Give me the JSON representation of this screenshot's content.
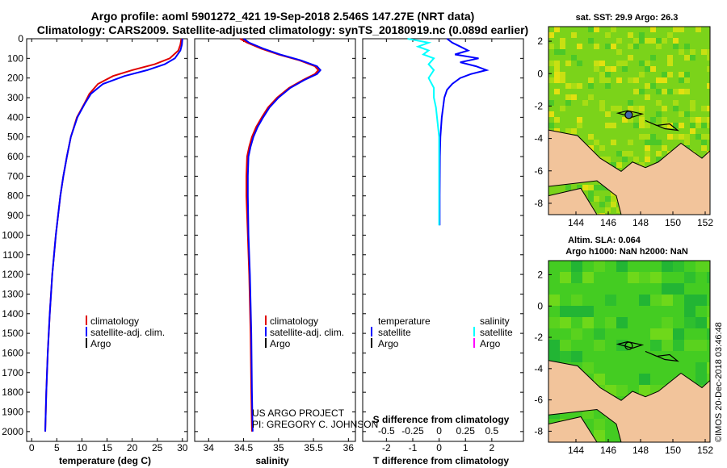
{
  "header": {
    "title_line1": "Argo profile: aoml 5901272_421 19-Sep-2018 2.546S 147.27E (NRT data)",
    "title_line2": "Climatology: CARS2009. Satellite-adjusted climatology: synTS_20180919.nc (0.089d earlier)"
  },
  "colors": {
    "climatology": "#e00000",
    "satellite": "#0000ff",
    "argo": "#000000",
    "sal_sat": "#00ffff",
    "sal_argo": "#ff00ff",
    "land": "#f2c49b",
    "ocean_green": "#33cc22"
  },
  "chart_data": [
    {
      "type": "line",
      "name": "temperature-profile",
      "xlabel": "temperature (deg C)",
      "ylabel": "",
      "xlim": [
        -1,
        31
      ],
      "ylim": [
        2050,
        0
      ],
      "xticks": [
        0,
        5,
        10,
        15,
        20,
        25,
        30
      ],
      "yticks": [
        0,
        100,
        200,
        300,
        400,
        500,
        600,
        700,
        800,
        900,
        1000,
        1100,
        1200,
        1300,
        1400,
        1500,
        1600,
        1700,
        1800,
        1900,
        2000
      ],
      "legend": [
        "climatology",
        "satellite-adj. clim.",
        "Argo"
      ],
      "series": [
        {
          "name": "climatology",
          "depth": [
            0,
            30,
            60,
            100,
            130,
            160,
            190,
            230,
            280,
            330,
            400,
            500,
            600,
            700,
            800,
            1000,
            1200,
            1400,
            1600,
            1800,
            2000
          ],
          "values": [
            29.8,
            29.6,
            29.2,
            27.5,
            24.5,
            20.0,
            16.2,
            13.2,
            11.5,
            10.5,
            9.0,
            7.8,
            7.0,
            6.3,
            5.7,
            4.8,
            4.1,
            3.6,
            3.2,
            2.9,
            2.7
          ]
        },
        {
          "name": "satellite-adj. clim.",
          "depth": [
            0,
            30,
            60,
            100,
            130,
            160,
            190,
            230,
            280,
            330,
            400,
            500,
            600,
            700,
            800,
            1000,
            1200,
            1400,
            1600,
            1800,
            2000
          ],
          "values": [
            30.0,
            29.9,
            29.6,
            28.5,
            26.5,
            23.0,
            18.5,
            14.2,
            11.8,
            10.6,
            9.1,
            7.8,
            7.0,
            6.3,
            5.7,
            4.8,
            4.1,
            3.6,
            3.2,
            2.9,
            2.7
          ]
        }
      ]
    },
    {
      "type": "line",
      "name": "salinity-profile",
      "xlabel": "salinity",
      "xlim": [
        33.8,
        36.1
      ],
      "ylim": [
        2050,
        0
      ],
      "xticks": [
        34,
        34.5,
        35,
        35.5,
        36
      ],
      "legend": [
        "climatology",
        "satellite-adj. clim.",
        "Argo"
      ],
      "annotations": [
        "US ARGO PROJECT",
        "PI: GREGORY C. JOHNSON"
      ],
      "series": [
        {
          "name": "climatology",
          "depth": [
            0,
            20,
            50,
            80,
            110,
            140,
            160,
            180,
            210,
            250,
            300,
            350,
            400,
            450,
            500,
            550,
            600,
            700,
            800,
            1000,
            1200,
            1500,
            1800,
            2000
          ],
          "values": [
            34.45,
            34.55,
            34.75,
            35.0,
            35.3,
            35.52,
            35.57,
            35.52,
            35.35,
            35.15,
            34.98,
            34.85,
            34.76,
            34.68,
            34.62,
            34.58,
            34.55,
            34.54,
            34.54,
            34.56,
            34.58,
            34.6,
            34.61,
            34.62
          ]
        },
        {
          "name": "satellite-adj. clim.",
          "depth": [
            0,
            20,
            50,
            80,
            110,
            140,
            160,
            180,
            210,
            250,
            300,
            350,
            400,
            450,
            500,
            550,
            600,
            700,
            800,
            1000,
            1200,
            1500,
            1800,
            2000
          ],
          "values": [
            34.5,
            34.58,
            34.78,
            35.02,
            35.32,
            35.55,
            35.6,
            35.55,
            35.37,
            35.17,
            35.0,
            34.87,
            34.78,
            34.7,
            34.64,
            34.6,
            34.57,
            34.56,
            34.56,
            34.57,
            34.59,
            34.61,
            34.62,
            34.63
          ]
        }
      ]
    },
    {
      "type": "line",
      "name": "difference-profile",
      "xlabel": "T difference from climatology",
      "xlabel_top": "S difference from climatology",
      "xlim": [
        -2.9,
        3.2
      ],
      "ylim": [
        2050,
        0
      ],
      "xticks": [
        -2,
        -1,
        0,
        1,
        2
      ],
      "xticklabels_s": [
        "-0.5",
        "-0.25",
        "0",
        "0.25",
        "0.5"
      ],
      "legend_temperature": {
        "title": "temperature",
        "items": [
          "satellite",
          "Argo"
        ]
      },
      "legend_salinity": {
        "title": "salinity",
        "items": [
          "satellite",
          "Argo"
        ]
      },
      "series": [
        {
          "name": "T satellite",
          "depth": [
            0,
            20,
            40,
            60,
            80,
            100,
            120,
            140,
            160,
            180,
            200,
            230,
            260,
            300,
            400,
            500,
            600,
            800,
            900,
            950
          ],
          "values": [
            0.3,
            0.5,
            0.8,
            1.1,
            0.6,
            1.5,
            0.8,
            1.4,
            1.8,
            1.2,
            0.8,
            0.5,
            0.3,
            0.2,
            0.1,
            0.05,
            0.03,
            0.02,
            0.02,
            0.02
          ]
        },
        {
          "name": "S satellite",
          "depth": [
            0,
            20,
            40,
            60,
            80,
            100,
            130,
            160,
            200,
            250,
            300,
            350,
            400,
            500,
            600,
            700,
            800,
            900,
            950
          ],
          "values": [
            -0.3,
            -0.1,
            -0.2,
            -0.1,
            -0.15,
            -0.05,
            -0.1,
            -0.05,
            -0.1,
            -0.05,
            -0.05,
            -0.03,
            -0.02,
            0.0,
            0.0,
            0.0,
            0.0,
            0.0,
            0.0
          ]
        }
      ]
    },
    {
      "type": "heatmap",
      "name": "sst-map",
      "title": "sat. SST: 29.9 Argo: 26.3",
      "xticks": [
        144,
        146,
        148,
        150,
        152
      ],
      "yticks": [
        2,
        0,
        -2,
        -4,
        -6,
        -8
      ],
      "xlim": [
        142.3,
        152.3
      ],
      "ylim": [
        -8.7,
        2.9
      ],
      "marker": {
        "lon": 147.27,
        "lat": -2.546
      }
    },
    {
      "type": "heatmap",
      "name": "sla-map",
      "title": "Altim. SLA: 0.064",
      "subtitle": "Argo h1000: NaN h2000: NaN",
      "xticks": [
        144,
        146,
        148,
        150,
        152
      ],
      "yticks": [
        2,
        0,
        -2,
        -4,
        -6,
        -8
      ],
      "xlim": [
        142.3,
        152.3
      ],
      "ylim": [
        -8.7,
        2.9
      ],
      "marker": {
        "lon": 147.27,
        "lat": -2.546
      }
    }
  ],
  "watermark": "©IMOS 20-Dec-2018 03:46:48"
}
